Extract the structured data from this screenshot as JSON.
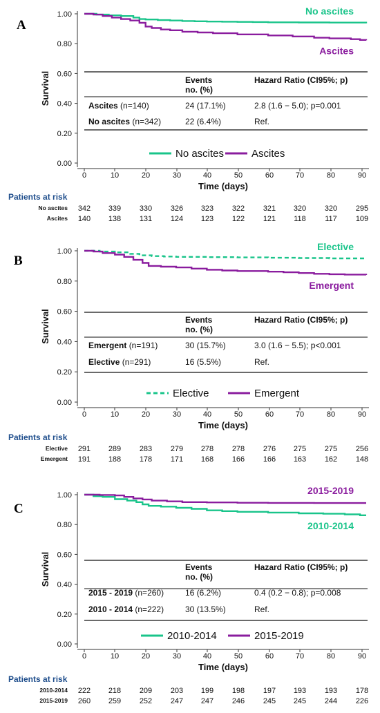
{
  "chart_data": [
    {
      "type": "line",
      "panel": "A",
      "xlabel": "Time (days)",
      "ylabel": "Survival",
      "xlim": [
        0,
        92
      ],
      "ylim": [
        0,
        1
      ],
      "x_ticks": [
        "0",
        "10",
        "20",
        "30",
        "40",
        "50",
        "60",
        "70",
        "80",
        "90"
      ],
      "y_ticks": [
        "0.00",
        "0.20",
        "0.40",
        "0.60",
        "0.80",
        "1.00"
      ],
      "series": [
        {
          "name": "No ascites",
          "color": "#19c48a",
          "dash": false,
          "label_position": "top",
          "points": [
            [
              0,
              1.0
            ],
            [
              4,
              0.995
            ],
            [
              8,
              0.99
            ],
            [
              12,
              0.985
            ],
            [
              16,
              0.975
            ],
            [
              18,
              0.965
            ],
            [
              20,
              0.962
            ],
            [
              24,
              0.958
            ],
            [
              28,
              0.955
            ],
            [
              32,
              0.952
            ],
            [
              36,
              0.95
            ],
            [
              40,
              0.948
            ],
            [
              45,
              0.947
            ],
            [
              50,
              0.946
            ],
            [
              55,
              0.945
            ],
            [
              60,
              0.943
            ],
            [
              70,
              0.942
            ],
            [
              80,
              0.941
            ],
            [
              92,
              0.936
            ]
          ]
        },
        {
          "name": "Ascites",
          "color": "#8a1c9e",
          "dash": false,
          "label_position": "bottom",
          "points": [
            [
              0,
              1.0
            ],
            [
              3,
              0.995
            ],
            [
              6,
              0.985
            ],
            [
              9,
              0.975
            ],
            [
              12,
              0.965
            ],
            [
              15,
              0.955
            ],
            [
              18,
              0.94
            ],
            [
              20,
              0.915
            ],
            [
              22,
              0.905
            ],
            [
              25,
              0.895
            ],
            [
              28,
              0.89
            ],
            [
              32,
              0.88
            ],
            [
              37,
              0.875
            ],
            [
              42,
              0.87
            ],
            [
              50,
              0.862
            ],
            [
              60,
              0.855
            ],
            [
              68,
              0.848
            ],
            [
              75,
              0.84
            ],
            [
              80,
              0.835
            ],
            [
              87,
              0.83
            ],
            [
              90,
              0.825
            ],
            [
              92,
              0.822
            ]
          ]
        }
      ],
      "table": {
        "header_events": [
          "Events",
          "no. (%)"
        ],
        "header_hr": "Hazard Ratio (CI95%; p)",
        "rows": [
          {
            "name": "Ascites",
            "n": "(n=140)",
            "events": "24 (17.1%)",
            "hr": "2.8 (1.6 − 5.0); p=0.001"
          },
          {
            "name": "No ascites",
            "n": "(n=342)",
            "events": "22 (6.4%)",
            "hr": "Ref."
          }
        ]
      },
      "legend": [
        {
          "label": "No ascites",
          "color": "#19c48a",
          "dash": false
        },
        {
          "label": "Ascites",
          "color": "#8a1c9e",
          "dash": false
        }
      ],
      "risk": {
        "title": "Patients at risk",
        "rows": [
          {
            "name": "No ascites",
            "values": [
              "342",
              "339",
              "330",
              "326",
              "323",
              "322",
              "321",
              "320",
              "320",
              "295"
            ]
          },
          {
            "name": "Ascites",
            "values": [
              "140",
              "138",
              "131",
              "124",
              "123",
              "122",
              "121",
              "118",
              "117",
              "109"
            ]
          }
        ]
      }
    },
    {
      "type": "line",
      "panel": "B",
      "xlabel": "Time (days)",
      "ylabel": "Survival",
      "xlim": [
        0,
        92
      ],
      "ylim": [
        0,
        1
      ],
      "x_ticks": [
        "0",
        "10",
        "20",
        "30",
        "40",
        "50",
        "60",
        "70",
        "80",
        "90"
      ],
      "y_ticks": [
        "0.00",
        "0.20",
        "0.40",
        "0.60",
        "0.80",
        "1.00"
      ],
      "series": [
        {
          "name": "Elective",
          "color": "#19c48a",
          "dash": true,
          "label_position": "top",
          "points": [
            [
              0,
              1.0
            ],
            [
              5,
              0.995
            ],
            [
              10,
              0.99
            ],
            [
              15,
              0.98
            ],
            [
              18,
              0.97
            ],
            [
              22,
              0.965
            ],
            [
              26,
              0.962
            ],
            [
              30,
              0.96
            ],
            [
              40,
              0.958
            ],
            [
              50,
              0.956
            ],
            [
              60,
              0.954
            ],
            [
              70,
              0.952
            ],
            [
              80,
              0.95
            ],
            [
              92,
              0.945
            ]
          ]
        },
        {
          "name": "Emergent",
          "color": "#8a1c9e",
          "dash": false,
          "label_position": "bottom",
          "points": [
            [
              0,
              1.0
            ],
            [
              3,
              0.995
            ],
            [
              6,
              0.985
            ],
            [
              10,
              0.975
            ],
            [
              13,
              0.96
            ],
            [
              16,
              0.94
            ],
            [
              19,
              0.92
            ],
            [
              21,
              0.9
            ],
            [
              25,
              0.895
            ],
            [
              30,
              0.89
            ],
            [
              35,
              0.882
            ],
            [
              40,
              0.875
            ],
            [
              45,
              0.87
            ],
            [
              50,
              0.866
            ],
            [
              60,
              0.862
            ],
            [
              65,
              0.858
            ],
            [
              70,
              0.853
            ],
            [
              75,
              0.848
            ],
            [
              80,
              0.845
            ],
            [
              85,
              0.843
            ],
            [
              92,
              0.84
            ]
          ]
        }
      ],
      "table": {
        "header_events": [
          "Events",
          "no. (%)"
        ],
        "header_hr": "Hazard Ratio (CI95%; p)",
        "rows": [
          {
            "name": "Emergent",
            "n": "(n=191)",
            "events": "30 (15.7%)",
            "hr": "3.0 (1.6 − 5.5); p<0.001"
          },
          {
            "name": "Elective",
            "n": "(n=291)",
            "events": "16 (5.5%)",
            "hr": "Ref."
          }
        ]
      },
      "legend": [
        {
          "label": "Elective",
          "color": "#19c48a",
          "dash": true
        },
        {
          "label": "Emergent",
          "color": "#8a1c9e",
          "dash": false
        }
      ],
      "risk": {
        "title": "Patients at risk",
        "rows": [
          {
            "name": "Elective",
            "values": [
              "291",
              "289",
              "283",
              "279",
              "278",
              "278",
              "276",
              "275",
              "275",
              "256"
            ]
          },
          {
            "name": "Emergent",
            "values": [
              "191",
              "188",
              "178",
              "171",
              "168",
              "166",
              "166",
              "163",
              "162",
              "148"
            ]
          }
        ]
      }
    },
    {
      "type": "line",
      "panel": "C",
      "xlabel": "Time (days)",
      "ylabel": "Survival",
      "xlim": [
        0,
        92
      ],
      "ylim": [
        0,
        1
      ],
      "x_ticks": [
        "0",
        "10",
        "20",
        "30",
        "40",
        "50",
        "60",
        "70",
        "80",
        "90"
      ],
      "y_ticks": [
        "0.00",
        "0.20",
        "0.40",
        "0.60",
        "0.80",
        "1.00"
      ],
      "series": [
        {
          "name": "2010-2014",
          "color": "#19c48a",
          "dash": false,
          "label_position": "bottom",
          "points": [
            [
              0,
              1.0
            ],
            [
              3,
              0.99
            ],
            [
              6,
              0.985
            ],
            [
              10,
              0.97
            ],
            [
              14,
              0.96
            ],
            [
              17,
              0.95
            ],
            [
              19,
              0.935
            ],
            [
              21,
              0.925
            ],
            [
              25,
              0.92
            ],
            [
              30,
              0.912
            ],
            [
              35,
              0.905
            ],
            [
              40,
              0.895
            ],
            [
              45,
              0.89
            ],
            [
              50,
              0.885
            ],
            [
              60,
              0.88
            ],
            [
              70,
              0.875
            ],
            [
              78,
              0.872
            ],
            [
              85,
              0.868
            ],
            [
              90,
              0.862
            ],
            [
              92,
              0.862
            ]
          ]
        },
        {
          "name": "2015-2019",
          "color": "#8a1c9e",
          "dash": false,
          "label_position": "top",
          "points": [
            [
              0,
              1.0
            ],
            [
              5,
              0.998
            ],
            [
              10,
              0.995
            ],
            [
              13,
              0.985
            ],
            [
              16,
              0.975
            ],
            [
              19,
              0.968
            ],
            [
              22,
              0.96
            ],
            [
              27,
              0.955
            ],
            [
              32,
              0.95
            ],
            [
              40,
              0.948
            ],
            [
              50,
              0.946
            ],
            [
              60,
              0.945
            ],
            [
              75,
              0.944
            ],
            [
              92,
              0.944
            ]
          ]
        }
      ],
      "table": {
        "header_events": [
          "Events",
          "no. (%)"
        ],
        "header_hr": "Hazard Ratio (CI95%; p)",
        "rows": [
          {
            "name": "2015 - 2019",
            "n": "(n=260)",
            "events": "16 (6.2%)",
            "hr": "0.4 (0.2 − 0.8); p=0.008"
          },
          {
            "name": "2010 - 2014",
            "n": "(n=222)",
            "events": "30 (13.5%)",
            "hr": "Ref."
          }
        ]
      },
      "legend": [
        {
          "label": "2010-2014",
          "color": "#19c48a",
          "dash": false
        },
        {
          "label": "2015-2019",
          "color": "#8a1c9e",
          "dash": false
        }
      ],
      "risk": {
        "title": "Patients at risk",
        "rows": [
          {
            "name": "2010-2014",
            "values": [
              "222",
              "218",
              "209",
              "203",
              "199",
              "198",
              "197",
              "193",
              "193",
              "178"
            ]
          },
          {
            "name": "2015-2019",
            "values": [
              "260",
              "259",
              "252",
              "247",
              "247",
              "246",
              "245",
              "245",
              "244",
              "226"
            ]
          }
        ]
      }
    }
  ]
}
